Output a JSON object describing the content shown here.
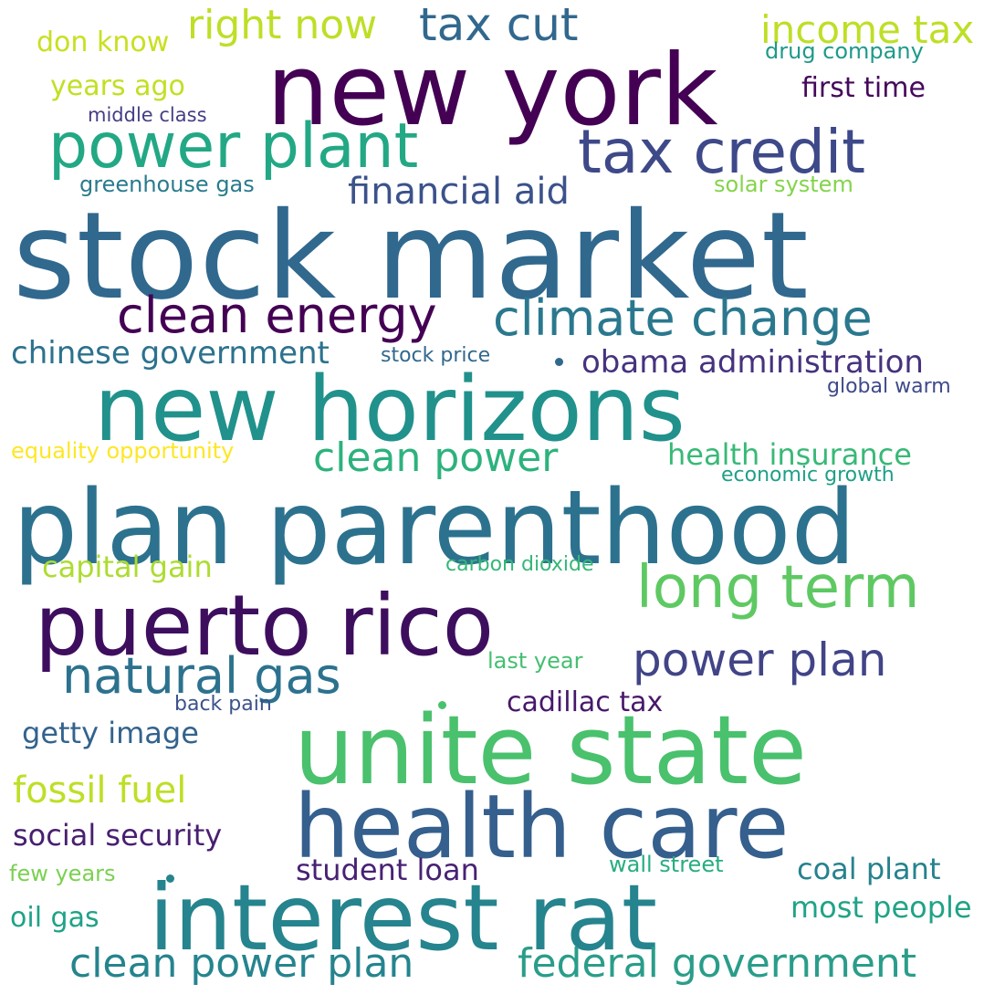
{
  "words": [
    {
      "text": "stock market",
      "color": "#31688e"
    },
    {
      "text": "plan parenthood",
      "color": "#2c728e"
    },
    {
      "text": "new horizons",
      "color": "#21918c"
    },
    {
      "text": "new york",
      "color": "#440154"
    },
    {
      "text": "unite state",
      "color": "#4ac16d"
    },
    {
      "text": "interest rat",
      "color": "#25848e"
    },
    {
      "text": "health care",
      "color": "#355f8d"
    },
    {
      "text": "puerto rico",
      "color": "#3e0e5e"
    },
    {
      "text": "power plant",
      "color": "#22a884"
    },
    {
      "text": "tax credit",
      "color": "#3e4989"
    },
    {
      "text": "long term",
      "color": "#5ec962"
    },
    {
      "text": "clean energy",
      "color": "#440154"
    },
    {
      "text": "climate change",
      "color": "#2a788e"
    },
    {
      "text": "natural gas",
      "color": "#2c728e"
    },
    {
      "text": "power plan",
      "color": "#414487"
    },
    {
      "text": "tax cut",
      "color": "#31688e"
    },
    {
      "text": "right now",
      "color": "#bddf26"
    },
    {
      "text": "income tax",
      "color": "#bddf26"
    },
    {
      "text": "clean power",
      "color": "#2db27d"
    },
    {
      "text": "clean power plan",
      "color": "#25848e"
    },
    {
      "text": "federal government",
      "color": "#2a9d8a"
    },
    {
      "text": "financial aid",
      "color": "#3b528b"
    },
    {
      "text": "obama administration",
      "color": "#46327e"
    },
    {
      "text": "chinese government",
      "color": "#2c728e"
    },
    {
      "text": "health insurance",
      "color": "#38b977"
    },
    {
      "text": "fossil fuel",
      "color": "#bddf26"
    },
    {
      "text": "social security",
      "color": "#481f70"
    },
    {
      "text": "student loan",
      "color": "#482173"
    },
    {
      "text": "coal plant",
      "color": "#26828e"
    },
    {
      "text": "most people",
      "color": "#20a386"
    },
    {
      "text": "cadillac tax",
      "color": "#48186a"
    },
    {
      "text": "getty image",
      "color": "#33638d"
    },
    {
      "text": "capital gain",
      "color": "#addc30"
    },
    {
      "text": "first time",
      "color": "#46085c"
    },
    {
      "text": "don know",
      "color": "#c8e020"
    },
    {
      "text": "years ago",
      "color": "#c2df23"
    },
    {
      "text": "oil gas",
      "color": "#1fa287"
    },
    {
      "text": "few years",
      "color": "#7ad151"
    },
    {
      "text": "equality opportunity",
      "color": "#fde725"
    },
    {
      "text": "drug company",
      "color": "#1f9a8a"
    },
    {
      "text": "middle class",
      "color": "#433e85"
    },
    {
      "text": "greenhouse gas",
      "color": "#2a7b8e"
    },
    {
      "text": "solar system",
      "color": "#84d44b"
    },
    {
      "text": "stock price",
      "color": "#31688e"
    },
    {
      "text": "global warm",
      "color": "#3e4a89"
    },
    {
      "text": "economic growth",
      "color": "#1f9f88"
    },
    {
      "text": "carbon dioxide",
      "color": "#35b779"
    },
    {
      "text": "last year",
      "color": "#44bf70"
    },
    {
      "text": "back pain",
      "color": "#3b528b"
    },
    {
      "text": "wall street",
      "color": "#27ad81"
    }
  ]
}
